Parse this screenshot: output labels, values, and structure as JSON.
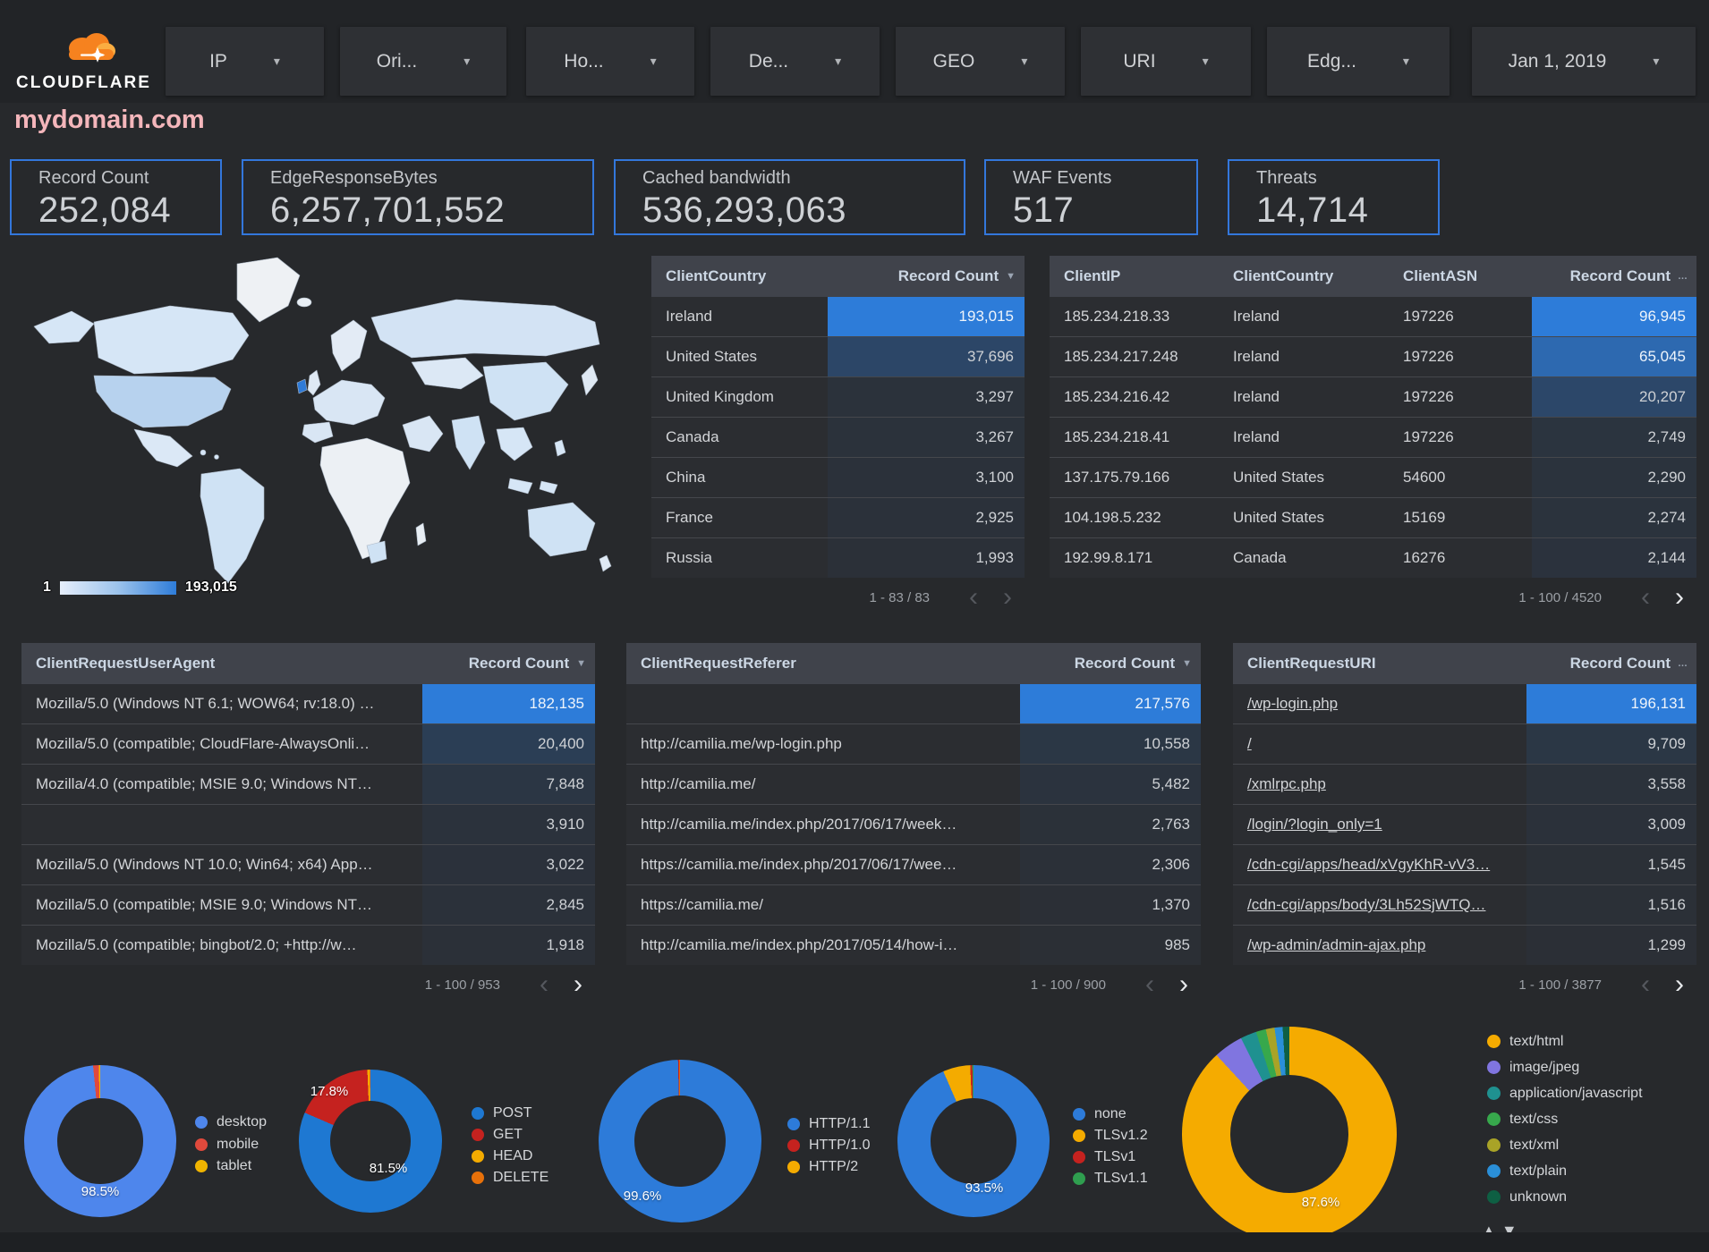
{
  "brand": {
    "logo_text": "CLOUDFLARE"
  },
  "toolbar": {
    "filters": [
      {
        "label": "IP"
      },
      {
        "label": "Ori..."
      },
      {
        "label": "Ho..."
      },
      {
        "label": "De..."
      },
      {
        "label": "GEO"
      },
      {
        "label": "URI"
      },
      {
        "label": "Edg..."
      }
    ],
    "date_filter": {
      "label": "Jan 1, 2019"
    }
  },
  "icons": {
    "caret_down": "▾",
    "sort_desc": "▼",
    "sort_more": "…",
    "chevron_left": "‹",
    "chevron_right": "›",
    "legend_up": "▲",
    "legend_down": "▼"
  },
  "page_title": "mydomain.com",
  "scorecards": [
    {
      "label": "Record Count",
      "value": "252,084"
    },
    {
      "label": "EdgeResponseBytes",
      "value": "6,257,701,552"
    },
    {
      "label": "Cached bandwidth",
      "value": "536,293,063"
    },
    {
      "label": "WAF Events",
      "value": "517"
    },
    {
      "label": "Threats",
      "value": "14,714"
    }
  ],
  "map": {
    "legend_min": "1",
    "legend_max": "193,015"
  },
  "tables": [
    {
      "id": "client_country",
      "columns": [
        "ClientCountry",
        "Record Count"
      ],
      "sort_indicator": "sort_desc",
      "max": 193015,
      "rows": [
        {
          "cells": [
            "Ireland"
          ],
          "value": 193015
        },
        {
          "cells": [
            "United States"
          ],
          "value": 37696
        },
        {
          "cells": [
            "United Kingdom"
          ],
          "value": 3297
        },
        {
          "cells": [
            "Canada"
          ],
          "value": 3267
        },
        {
          "cells": [
            "China"
          ],
          "value": 3100
        },
        {
          "cells": [
            "France"
          ],
          "value": 2925
        },
        {
          "cells": [
            "Russia"
          ],
          "value": 1993
        }
      ],
      "pagination": {
        "range": "1 - 83 / 83",
        "prev_enabled": false,
        "next_enabled": false
      }
    },
    {
      "id": "client_ip",
      "columns": [
        "ClientIP",
        "ClientCountry",
        "ClientASN",
        "Record Count"
      ],
      "sort_indicator": "sort_more",
      "max": 96945,
      "rows": [
        {
          "cells": [
            "185.234.218.33",
            "Ireland",
            "197226"
          ],
          "value": 96945
        },
        {
          "cells": [
            "185.234.217.248",
            "Ireland",
            "197226"
          ],
          "value": 65045
        },
        {
          "cells": [
            "185.234.216.42",
            "Ireland",
            "197226"
          ],
          "value": 20207
        },
        {
          "cells": [
            "185.234.218.41",
            "Ireland",
            "197226"
          ],
          "value": 2749
        },
        {
          "cells": [
            "137.175.79.166",
            "United States",
            "54600"
          ],
          "value": 2290
        },
        {
          "cells": [
            "104.198.5.232",
            "United States",
            "15169"
          ],
          "value": 2274
        },
        {
          "cells": [
            "192.99.8.171",
            "Canada",
            "16276"
          ],
          "value": 2144
        }
      ],
      "pagination": {
        "range": "1 - 100 / 4520",
        "prev_enabled": false,
        "next_enabled": true
      }
    },
    {
      "id": "user_agent",
      "columns": [
        "ClientRequestUserAgent",
        "Record Count"
      ],
      "sort_indicator": "sort_desc",
      "max": 182135,
      "rows": [
        {
          "cells": [
            "Mozilla/5.0 (Windows NT 6.1; WOW64; rv:18.0) …"
          ],
          "value": 182135
        },
        {
          "cells": [
            "Mozilla/5.0 (compatible; CloudFlare-AlwaysOnli…"
          ],
          "value": 20400
        },
        {
          "cells": [
            "Mozilla/4.0 (compatible; MSIE 9.0; Windows NT…"
          ],
          "value": 7848
        },
        {
          "cells": [
            ""
          ],
          "value": 3910
        },
        {
          "cells": [
            "Mozilla/5.0 (Windows NT 10.0; Win64; x64) App…"
          ],
          "value": 3022
        },
        {
          "cells": [
            "Mozilla/5.0 (compatible; MSIE 9.0; Windows NT…"
          ],
          "value": 2845
        },
        {
          "cells": [
            "Mozilla/5.0 (compatible; bingbot/2.0; +http://w…"
          ],
          "value": 1918
        }
      ],
      "pagination": {
        "range": "1 - 100 / 953",
        "prev_enabled": false,
        "next_enabled": true
      }
    },
    {
      "id": "referer",
      "columns": [
        "ClientRequestReferer",
        "Record Count"
      ],
      "sort_indicator": "sort_desc",
      "max": 217576,
      "rows": [
        {
          "cells": [
            ""
          ],
          "value": 217576
        },
        {
          "cells": [
            "http://camilia.me/wp-login.php"
          ],
          "value": 10558
        },
        {
          "cells": [
            "http://camilia.me/"
          ],
          "value": 5482
        },
        {
          "cells": [
            "http://camilia.me/index.php/2017/06/17/week…"
          ],
          "value": 2763
        },
        {
          "cells": [
            "https://camilia.me/index.php/2017/06/17/wee…"
          ],
          "value": 2306
        },
        {
          "cells": [
            "https://camilia.me/"
          ],
          "value": 1370
        },
        {
          "cells": [
            "http://camilia.me/index.php/2017/05/14/how-i…"
          ],
          "value": 985
        }
      ],
      "pagination": {
        "range": "1 - 100 / 900",
        "prev_enabled": false,
        "next_enabled": true
      }
    },
    {
      "id": "uri",
      "columns": [
        "ClientRequestURI",
        "Record Count"
      ],
      "sort_indicator": "sort_more",
      "links": true,
      "max": 196131,
      "rows": [
        {
          "cells": [
            "/wp-login.php"
          ],
          "value": 196131
        },
        {
          "cells": [
            "/"
          ],
          "value": 9709
        },
        {
          "cells": [
            "/xmlrpc.php"
          ],
          "value": 3558
        },
        {
          "cells": [
            "/login/?login_only=1"
          ],
          "value": 3009
        },
        {
          "cells": [
            "/cdn-cgi/apps/head/xVgyKhR-vV3…"
          ],
          "value": 1545
        },
        {
          "cells": [
            "/cdn-cgi/apps/body/3Lh52SjWTQ…"
          ],
          "value": 1516
        },
        {
          "cells": [
            "/wp-admin/admin-ajax.php"
          ],
          "value": 1299
        }
      ],
      "pagination": {
        "range": "1 - 100 / 3877",
        "prev_enabled": false,
        "next_enabled": true
      }
    }
  ],
  "chart_data": [
    {
      "type": "pie",
      "legend": [
        "desktop",
        "mobile",
        "tablet"
      ],
      "values": [
        98.5,
        1.2,
        0.3
      ],
      "colors": [
        "#4e86ec",
        "#e0493c",
        "#f0b400"
      ],
      "center_labels": [
        "98.5%"
      ],
      "legend_position": "right"
    },
    {
      "type": "pie",
      "legend": [
        "POST",
        "GET",
        "HEAD",
        "DELETE"
      ],
      "values": [
        81.5,
        17.8,
        0.5,
        0.2
      ],
      "colors": [
        "#1e78d2",
        "#c5221f",
        "#f4ab00",
        "#e8710a"
      ],
      "center_labels": [
        "17.8%",
        "81.5%"
      ],
      "legend_position": "right"
    },
    {
      "type": "pie",
      "legend": [
        "HTTP/1.1",
        "HTTP/1.0",
        "HTTP/2"
      ],
      "values": [
        99.6,
        0.3,
        0.1
      ],
      "colors": [
        "#2d7bd9",
        "#c5221f",
        "#f4ab00"
      ],
      "center_labels": [
        "99.6%"
      ],
      "legend_position": "right"
    },
    {
      "type": "pie",
      "legend": [
        "none",
        "TLSv1.2",
        "TLSv1",
        "TLSv1.1"
      ],
      "values": [
        93.5,
        5.8,
        0.45,
        0.25
      ],
      "colors": [
        "#2d7bd9",
        "#f4ab00",
        "#c5221f",
        "#2f9e4f"
      ],
      "center_labels": [
        "93.5%"
      ],
      "legend_position": "right"
    },
    {
      "type": "pie",
      "legend": [
        "text/html",
        "image/jpeg",
        "application/javascript",
        "text/css",
        "text/xml",
        "text/plain",
        "unknown"
      ],
      "values": [
        87.6,
        4.4,
        2.4,
        1.5,
        1.3,
        1.2,
        1.0
      ],
      "colors": [
        "#f5ab00",
        "#8075e0",
        "#1f9190",
        "#37a84c",
        "#a9a327",
        "#2a8fd8",
        "#0e5f43"
      ],
      "center_labels": [
        "87.6%"
      ],
      "legend_position": "right"
    }
  ],
  "legend_scroll": {
    "up_label": "scroll legend up",
    "down_label": "scroll legend down"
  }
}
